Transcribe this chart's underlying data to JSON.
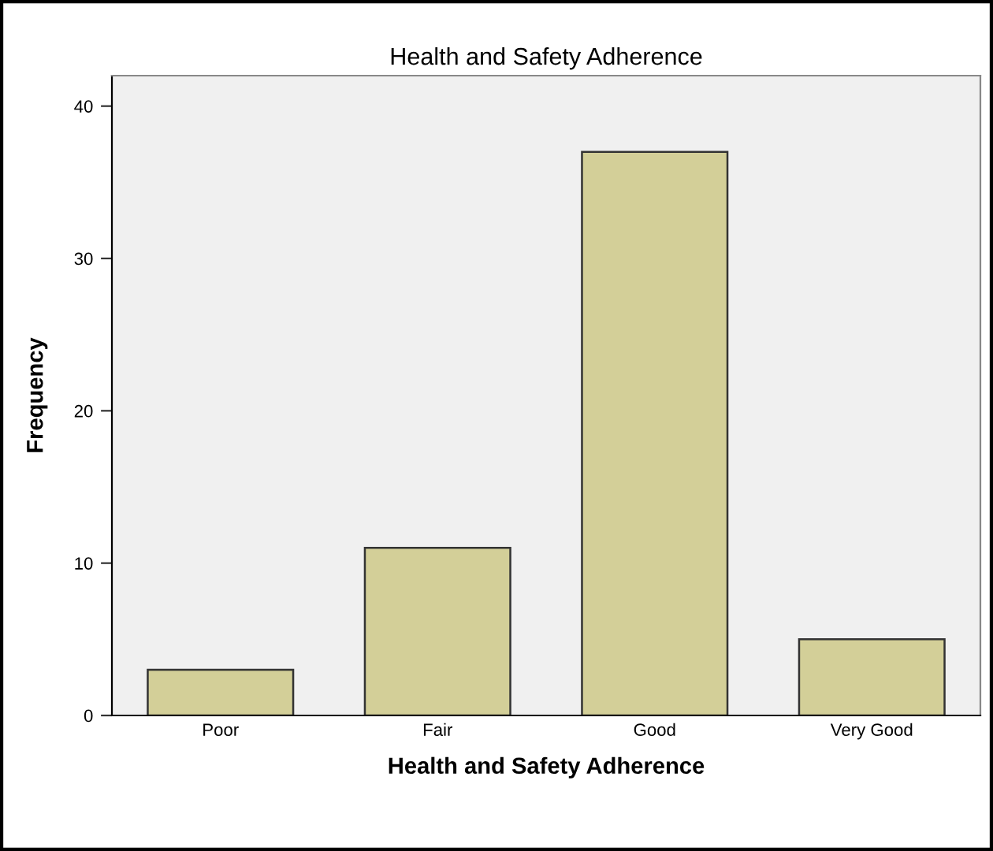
{
  "chart_data": {
    "type": "bar",
    "title": "Health and Safety Adherence",
    "xlabel": "Health and Safety Adherence",
    "ylabel": "Frequency",
    "categories": [
      "Poor",
      "Fair",
      "Good",
      "Very Good"
    ],
    "values": [
      3,
      11,
      37,
      5
    ],
    "color": "#d3cf98",
    "ylim": [
      0,
      42
    ],
    "yticks": [
      0,
      10,
      20,
      30,
      40
    ],
    "grid": false
  }
}
